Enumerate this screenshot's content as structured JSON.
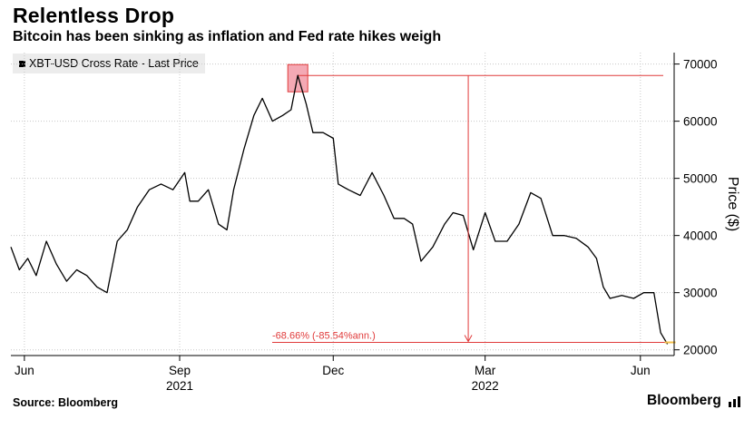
{
  "chart_data": {
    "type": "line",
    "title": "Relentless Drop",
    "subtitle": "Bitcoin has been sinking as inflation and Fed rate hikes weigh",
    "legend": "XBT-USD Cross Rate - Last Price",
    "ylabel": "Price ($)",
    "ylim": [
      19000,
      72000
    ],
    "yticks": [
      20000,
      30000,
      40000,
      50000,
      60000,
      70000
    ],
    "xticks": [
      {
        "label": "Jun",
        "year": "",
        "date": "2021-06-01"
      },
      {
        "label": "Sep",
        "year": "2021",
        "date": "2021-09-01"
      },
      {
        "label": "Dec",
        "year": "",
        "date": "2021-12-01"
      },
      {
        "label": "Mar",
        "year": "2022",
        "date": "2022-03-01"
      },
      {
        "label": "Jun",
        "year": "",
        "date": "2022-06-01"
      }
    ],
    "grid": true,
    "line_color": "#000000",
    "annotation_color": "#e03b3b",
    "series": [
      {
        "x": [
          "2021-05-24",
          "2021-05-29",
          "2021-06-03",
          "2021-06-08",
          "2021-06-14",
          "2021-06-20",
          "2021-06-26",
          "2021-07-02",
          "2021-07-08",
          "2021-07-14",
          "2021-07-20",
          "2021-07-26",
          "2021-08-01",
          "2021-08-07",
          "2021-08-14",
          "2021-08-21",
          "2021-08-28",
          "2021-09-04",
          "2021-09-07",
          "2021-09-12",
          "2021-09-18",
          "2021-09-24",
          "2021-09-29",
          "2021-10-03",
          "2021-10-09",
          "2021-10-15",
          "2021-10-20",
          "2021-10-26",
          "2021-11-01",
          "2021-11-06",
          "2021-11-10",
          "2021-11-15",
          "2021-11-19",
          "2021-11-25",
          "2021-12-01",
          "2021-12-04",
          "2021-12-10",
          "2021-12-17",
          "2021-12-24",
          "2021-12-31",
          "2022-01-06",
          "2022-01-12",
          "2022-01-17",
          "2022-01-22",
          "2022-01-29",
          "2022-02-05",
          "2022-02-10",
          "2022-02-16",
          "2022-02-22",
          "2022-03-01",
          "2022-03-07",
          "2022-03-14",
          "2022-03-21",
          "2022-03-28",
          "2022-04-03",
          "2022-04-10",
          "2022-04-17",
          "2022-04-24",
          "2022-05-01",
          "2022-05-06",
          "2022-05-10",
          "2022-05-14",
          "2022-05-21",
          "2022-05-28",
          "2022-06-03",
          "2022-06-09",
          "2022-06-13",
          "2022-06-17"
        ],
        "y": [
          38000,
          34000,
          36000,
          33000,
          39000,
          35000,
          32000,
          34000,
          33000,
          31000,
          30000,
          39000,
          41000,
          45000,
          48000,
          49000,
          48000,
          51000,
          46000,
          46000,
          48000,
          42000,
          41000,
          48000,
          55000,
          61000,
          64000,
          60000,
          61000,
          62000,
          68000,
          63000,
          58000,
          58000,
          57000,
          49000,
          48000,
          47000,
          51000,
          47000,
          43000,
          43000,
          42000,
          35500,
          38000,
          42000,
          44000,
          43500,
          37500,
          44000,
          39000,
          39000,
          42000,
          47500,
          46500,
          40000,
          40000,
          39500,
          38000,
          36000,
          31000,
          29000,
          29500,
          29000,
          30000,
          30000,
          23000,
          21000
        ]
      }
    ],
    "annotations": {
      "peak": {
        "date": "2021-11-10",
        "value": 68000
      },
      "trough": {
        "date": "2022-06-17",
        "value": 21300
      },
      "label": "-68.66% (-85.54%ann.)",
      "drop_date": "2022-02-19"
    }
  },
  "footer": {
    "source": "Source: Bloomberg",
    "brand": "Bloomberg",
    "brand_icon": "bloomberg-chart-icon"
  }
}
